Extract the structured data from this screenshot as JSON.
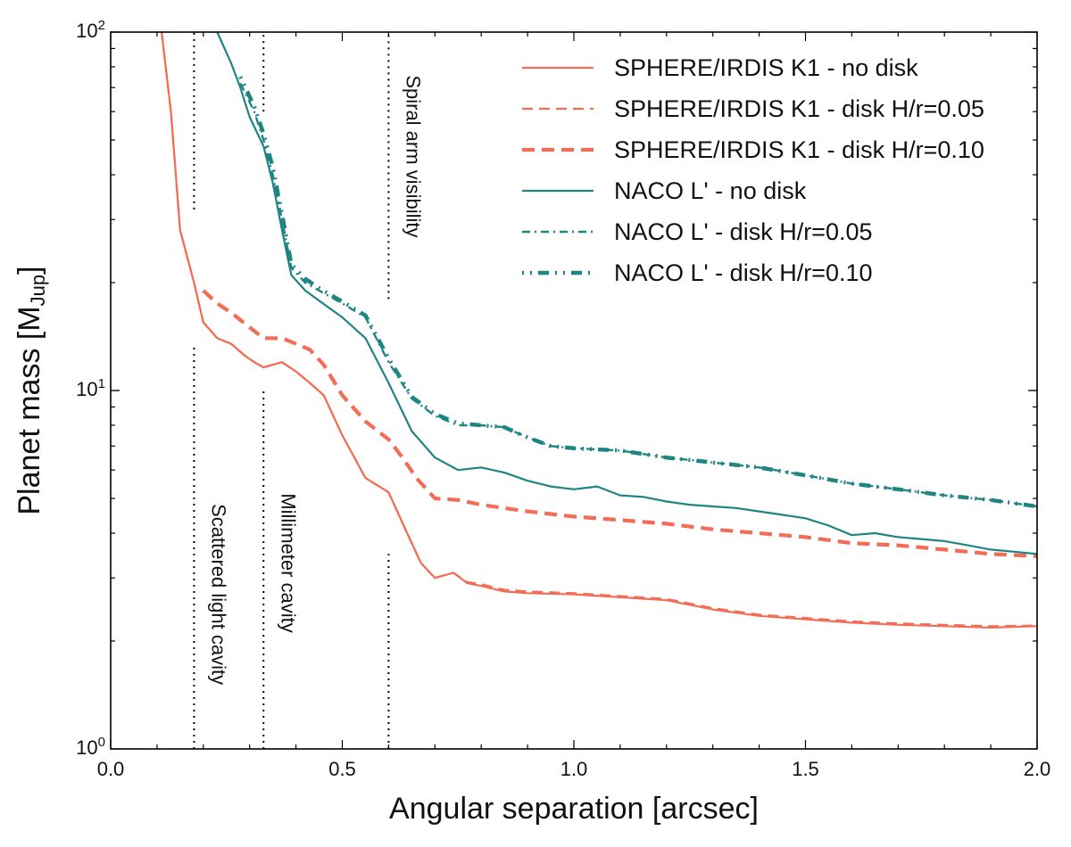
{
  "chart_data": {
    "type": "line",
    "xlabel": "Angular separation [arcsec]",
    "ylabel": "Planet mass [M",
    "ylabel_subscript": "Jup",
    "ylabel_close": "]",
    "xlim": [
      0.0,
      2.0
    ],
    "ylim": [
      1,
      100
    ],
    "yscale": "log",
    "x_ticks": [
      {
        "value": 0.0,
        "label": "0.0"
      },
      {
        "value": 0.5,
        "label": "0.5"
      },
      {
        "value": 1.0,
        "label": "1.0"
      },
      {
        "value": 1.5,
        "label": "1.5"
      },
      {
        "value": 2.0,
        "label": "2.0"
      }
    ],
    "y_ticks": [
      {
        "value": 1,
        "base": "10",
        "exp": "0"
      },
      {
        "value": 10,
        "base": "10",
        "exp": "1"
      },
      {
        "value": 100,
        "base": "10",
        "exp": "2"
      }
    ],
    "legend_position": "top-right",
    "series": [
      {
        "name": "SPHERE/IRDIS K1 - no disk",
        "color": "#f26d55",
        "style": "solid",
        "x": [
          0.11,
          0.13,
          0.15,
          0.18,
          0.2,
          0.23,
          0.26,
          0.29,
          0.31,
          0.33,
          0.35,
          0.37,
          0.4,
          0.43,
          0.46,
          0.5,
          0.55,
          0.6,
          0.64,
          0.67,
          0.7,
          0.72,
          0.74,
          0.77,
          0.8,
          0.85,
          0.9,
          1.0,
          1.1,
          1.2,
          1.3,
          1.4,
          1.5,
          1.6,
          1.7,
          1.8,
          1.9,
          2.0
        ],
        "y": [
          100,
          60,
          28,
          20,
          15.5,
          14,
          13.5,
          12.5,
          12,
          11.6,
          11.8,
          12,
          11.3,
          10.5,
          9.7,
          7.5,
          5.7,
          5.2,
          4,
          3.3,
          3,
          3.05,
          3.1,
          2.9,
          2.85,
          2.75,
          2.72,
          2.7,
          2.65,
          2.6,
          2.45,
          2.35,
          2.3,
          2.25,
          2.22,
          2.2,
          2.18,
          2.2
        ]
      },
      {
        "name": "SPHERE/IRDIS K1 - disk H/r=0.05",
        "color": "#f26d55",
        "style": "dashed-thin",
        "x": [
          0.11,
          0.13,
          0.15,
          0.18,
          0.2,
          0.23,
          0.26,
          0.29,
          0.31,
          0.33,
          0.35,
          0.37,
          0.4,
          0.43,
          0.46,
          0.5,
          0.55,
          0.6,
          0.64,
          0.67,
          0.7,
          0.72,
          0.74,
          0.77,
          0.8,
          0.85,
          0.9,
          1.0,
          1.1,
          1.2,
          1.3,
          1.4,
          1.5,
          1.6,
          1.7,
          1.8,
          1.9,
          2.0
        ],
        "y": [
          100,
          60,
          28,
          20,
          15.5,
          14,
          13.5,
          12.5,
          12,
          11.6,
          11.8,
          12,
          11.3,
          10.5,
          9.7,
          7.5,
          5.7,
          5.2,
          4,
          3.3,
          3,
          3.05,
          3.1,
          2.92,
          2.88,
          2.78,
          2.75,
          2.72,
          2.67,
          2.62,
          2.47,
          2.37,
          2.32,
          2.27,
          2.24,
          2.22,
          2.2,
          2.21
        ]
      },
      {
        "name": "SPHERE/IRDIS K1 - disk H/r=0.10",
        "color": "#f26d55",
        "style": "dashed-thick",
        "x": [
          0.2,
          0.23,
          0.26,
          0.3,
          0.33,
          0.37,
          0.4,
          0.43,
          0.46,
          0.5,
          0.55,
          0.6,
          0.63,
          0.66,
          0.7,
          0.75,
          0.8,
          0.9,
          1.0,
          1.1,
          1.2,
          1.3,
          1.4,
          1.5,
          1.6,
          1.7,
          1.8,
          1.9,
          2.0
        ],
        "y": [
          19,
          17.5,
          16.5,
          15,
          14,
          14,
          13.5,
          13,
          11.8,
          9.7,
          8.2,
          7.3,
          6.5,
          5.7,
          5,
          4.95,
          4.8,
          4.6,
          4.45,
          4.35,
          4.25,
          4.1,
          4,
          3.9,
          3.75,
          3.7,
          3.6,
          3.5,
          3.45
        ]
      },
      {
        "name": "NACO L' - no disk",
        "color": "#1f8584",
        "style": "solid",
        "x": [
          0.23,
          0.26,
          0.28,
          0.3,
          0.33,
          0.35,
          0.37,
          0.39,
          0.42,
          0.45,
          0.5,
          0.55,
          0.6,
          0.65,
          0.7,
          0.75,
          0.8,
          0.85,
          0.9,
          0.95,
          1.0,
          1.05,
          1.1,
          1.15,
          1.2,
          1.25,
          1.3,
          1.35,
          1.4,
          1.45,
          1.5,
          1.55,
          1.6,
          1.65,
          1.7,
          1.75,
          1.8,
          1.85,
          1.9,
          1.95,
          2.0
        ],
        "y": [
          100,
          82,
          70,
          58,
          48,
          38,
          28,
          21,
          19,
          17.8,
          16,
          14,
          10.5,
          7.7,
          6.5,
          6,
          6.1,
          5.9,
          5.6,
          5.4,
          5.3,
          5.4,
          5.1,
          5.05,
          4.9,
          4.8,
          4.75,
          4.7,
          4.6,
          4.5,
          4.4,
          4.2,
          3.95,
          4,
          3.9,
          3.85,
          3.8,
          3.7,
          3.6,
          3.55,
          3.5
        ]
      },
      {
        "name": "NACO L' - disk H/r=0.05",
        "color": "#1f8584",
        "style": "dashdot-thin",
        "x": [
          0.28,
          0.31,
          0.33,
          0.35,
          0.37,
          0.39,
          0.42,
          0.45,
          0.5,
          0.55,
          0.6,
          0.65,
          0.7,
          0.75,
          0.8,
          0.85,
          0.9,
          0.95,
          1.0,
          1.1,
          1.2,
          1.3,
          1.4,
          1.5,
          1.6,
          1.7,
          1.8,
          1.9,
          2.0
        ],
        "y": [
          72,
          60,
          50,
          40,
          30,
          22,
          20,
          19,
          17.5,
          16,
          12,
          9.5,
          8.5,
          8,
          8,
          7.9,
          7.4,
          7,
          6.9,
          6.8,
          6.5,
          6.3,
          6.1,
          5.8,
          5.5,
          5.3,
          5.1,
          4.95,
          4.75
        ]
      },
      {
        "name": "NACO L' - disk H/r=0.10",
        "color": "#1f8584",
        "style": "dashdot-thick",
        "x": [
          0.28,
          0.31,
          0.33,
          0.35,
          0.37,
          0.39,
          0.42,
          0.45,
          0.5,
          0.55,
          0.6,
          0.65,
          0.7,
          0.75,
          0.8,
          0.85,
          0.9,
          0.95,
          1.0,
          1.1,
          1.2,
          1.3,
          1.4,
          1.5,
          1.6,
          1.7,
          1.8,
          1.9,
          2.0
        ],
        "y": [
          75,
          62,
          52,
          42,
          31,
          22.5,
          20.5,
          19.3,
          17.7,
          16.2,
          12.3,
          9.6,
          8.6,
          8.1,
          8,
          7.9,
          7.4,
          7,
          6.9,
          6.8,
          6.5,
          6.3,
          6.1,
          5.8,
          5.5,
          5.3,
          5.1,
          4.95,
          4.75
        ]
      }
    ],
    "annotations": [
      {
        "text": "Scattered light cavity",
        "x": 0.18,
        "segments": [
          [
            1,
            13.5
          ],
          [
            32,
            100
          ]
        ],
        "label_y": 2.7
      },
      {
        "text": "Millimeter cavity",
        "x": 0.33,
        "segments": [
          [
            1,
            10
          ],
          [
            60,
            100
          ]
        ],
        "label_y": 3.3
      },
      {
        "text": "Spiral arm visibility",
        "x": 0.6,
        "segments": [
          [
            1,
            3.5
          ],
          [
            18,
            100
          ]
        ],
        "label_y": 45
      }
    ]
  }
}
